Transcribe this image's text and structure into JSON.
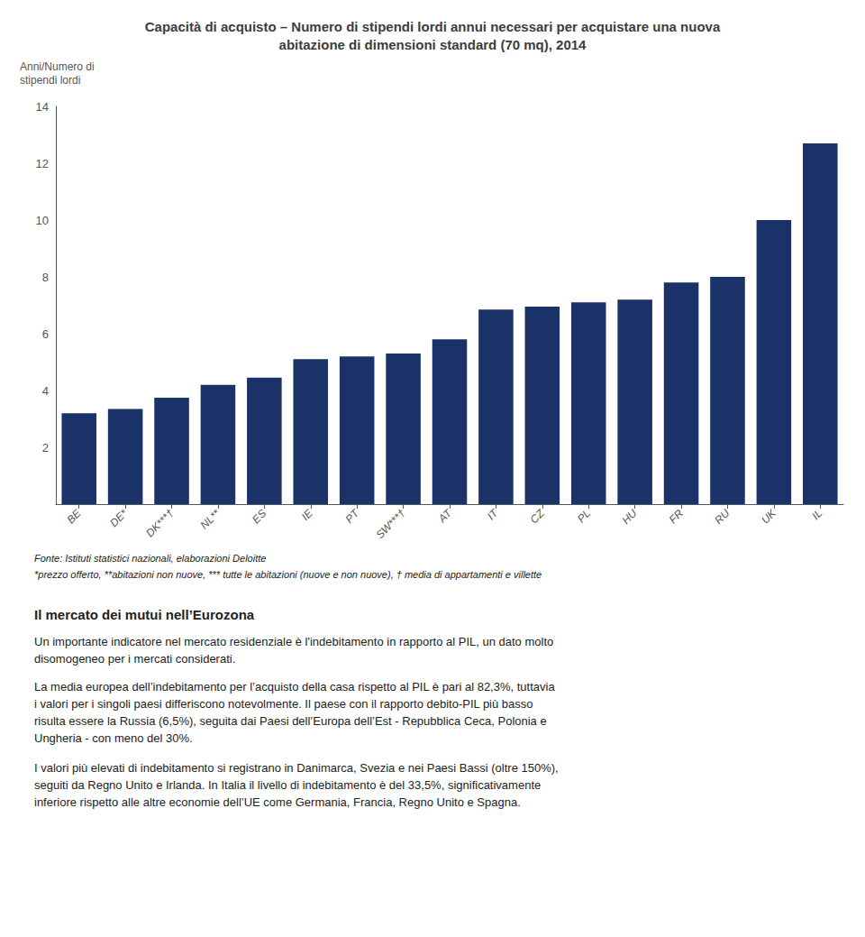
{
  "chart_data": {
    "type": "bar",
    "title": "Capacità di acquisto – Numero di stipendi lordi annui necessari per acquistare una nuova\nabitazione di dimensioni standard (70 mq), 2014",
    "ylabel": "Anni/Numero di\nstipendi lordi",
    "categories": [
      "BE",
      "DE*",
      "DK***†",
      "NL**",
      "ES",
      "IE",
      "PT",
      "SW***†",
      "AT",
      "IT",
      "CZ",
      "PL",
      "HU",
      "FR",
      "RU",
      "UK",
      "IL"
    ],
    "values": [
      3.2,
      3.35,
      3.75,
      4.2,
      4.45,
      5.1,
      5.2,
      5.3,
      5.8,
      6.85,
      6.95,
      7.1,
      7.2,
      7.8,
      8.0,
      10.0,
      12.7
    ],
    "color": "#1a3268",
    "ylim": [
      0,
      14
    ],
    "yticks": [
      2,
      4,
      6,
      8,
      10,
      12,
      14
    ],
    "grid": false,
    "annotations": [
      "Fonte: Istituti statistici nazionali, elaborazioni Deloitte",
      "*prezzo offerto, **abitazioni non nuove, *** tutte le abitazioni (nuove e non nuove), † media di appartamenti e villette",
      "Il mercato dei mutui nell’Eurozona",
      "Un importante indicatore nel mercato residenziale è l'indebitamento in rapporto al PIL, un dato molto\ndisomogeneo per i mercati considerati.",
      "La media europea dell’indebitamento per l’acquisto della casa rispetto al PIL è pari al 82,3%, tuttavia\ni valori per i singoli paesi differiscono notevolmente. Il paese con il rapporto debito-PIL più basso\nrisulta essere la Russia (6,5%), seguita dai Paesi dell’Europa dell’Est - Repubblica Ceca, Polonia e\nUngheria - con meno del 30%.",
      "I valori più elevati di indebitamento si registrano in Danimarca, Svezia e nei Paesi Bassi (oltre 150%),\nseguiti da Regno Unito e Irlanda. In Italia il livello di indebitamento è del 33,5%, significativamente\ninferiore rispetto alle altre economie dell’UE come Germania, Francia, Regno Unito e Spagna."
    ]
  }
}
